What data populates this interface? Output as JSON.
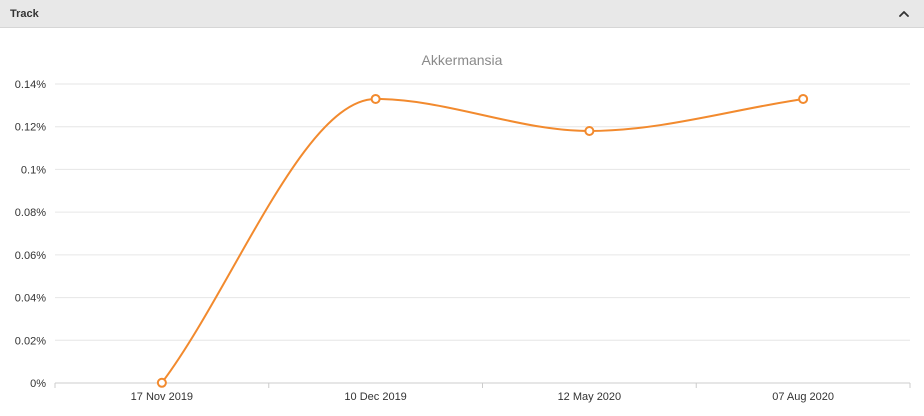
{
  "panel": {
    "title": "Track",
    "toggle_icon": "chevron-up-icon"
  },
  "colors": {
    "series": "#f28a2e",
    "grid": "#e6e6e6",
    "axis": "#cccccc",
    "header_bg": "#e8e8e8"
  },
  "chart_data": {
    "type": "line",
    "title": "Akkermansia",
    "xlabel": "",
    "ylabel": "",
    "categories": [
      "17 Nov 2019",
      "10 Dec 2019",
      "12 May 2020",
      "07 Aug 2020"
    ],
    "series": [
      {
        "values": [
          0.0001,
          0.133,
          0.118,
          0.133
        ]
      }
    ],
    "ylim": [
      0,
      0.14
    ],
    "yticks": [
      0,
      0.02,
      0.04,
      0.06,
      0.08,
      0.1,
      0.12,
      0.14
    ],
    "ytick_labels": [
      "0%",
      "0.02%",
      "0.04%",
      "0.06%",
      "0.08%",
      "0.1%",
      "0.12%",
      "0.14%"
    ],
    "y_unit": "%",
    "grid": true,
    "legend": "none",
    "smooth": true
  }
}
